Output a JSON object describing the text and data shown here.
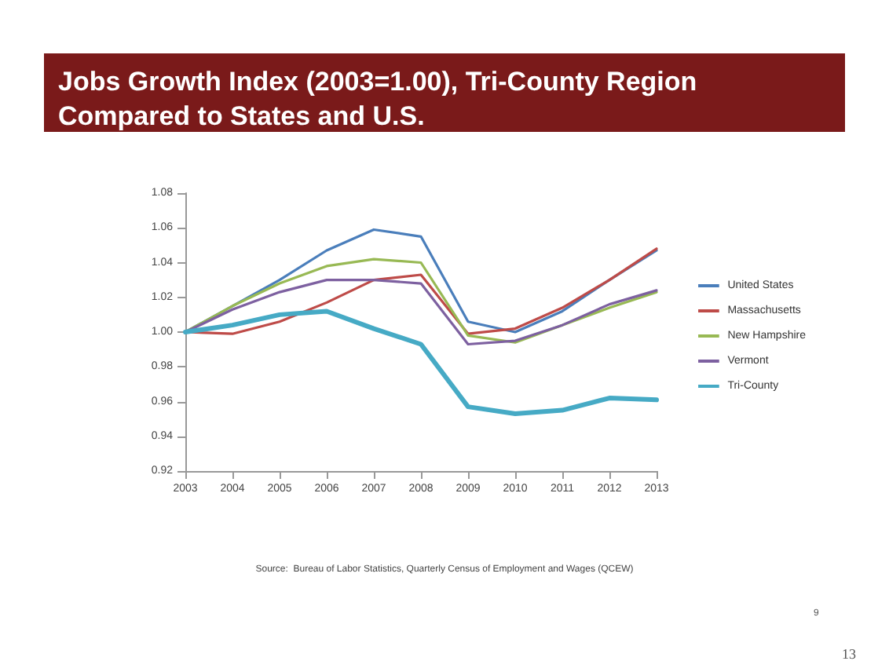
{
  "chart_data": {
    "type": "line",
    "title": "Jobs Growth Index (2003=1.00), Tri-County Region\nCompared to States and U.S.",
    "categories": [
      "2003",
      "2004",
      "2005",
      "2006",
      "2007",
      "2008",
      "2009",
      "2010",
      "2011",
      "2012",
      "2013"
    ],
    "series": [
      {
        "name": "United States",
        "color": "#4a7ebb",
        "values": [
          1.0,
          1.015,
          1.03,
          1.047,
          1.059,
          1.055,
          1.006,
          1.0,
          1.012,
          1.03,
          1.047
        ]
      },
      {
        "name": "Massachusetts",
        "color": "#be4b48",
        "values": [
          1.0,
          0.999,
          1.006,
          1.017,
          1.03,
          1.033,
          0.999,
          1.002,
          1.014,
          1.03,
          1.048
        ]
      },
      {
        "name": "New Hampshire",
        "color": "#98b954",
        "values": [
          1.0,
          1.015,
          1.028,
          1.038,
          1.042,
          1.04,
          0.998,
          0.994,
          1.004,
          1.014,
          1.023
        ]
      },
      {
        "name": "Vermont",
        "color": "#7d60a0",
        "values": [
          1.0,
          1.013,
          1.023,
          1.03,
          1.03,
          1.028,
          0.993,
          0.995,
          1.004,
          1.016,
          1.024
        ]
      },
      {
        "name": "Tri-County",
        "color": "#46aac5",
        "values": [
          1.0,
          1.004,
          1.01,
          1.012,
          1.002,
          0.993,
          0.957,
          0.953,
          0.955,
          0.962,
          0.961
        ]
      }
    ],
    "ylim": [
      0.92,
      1.08
    ],
    "yticks": [
      0.92,
      0.94,
      0.96,
      0.98,
      {
        "value": 1,
        "label": "1.00"
      },
      1.02,
      1.04,
      1.06,
      1.08
    ],
    "legend": "right",
    "grid": false,
    "marker": "none",
    "line_style": "solid",
    "annotations": [
      "Source:  Bureau of Labor Statistics, Quarterly Census of Employment and Wages (QCEW)",
      "9",
      "13"
    ]
  }
}
